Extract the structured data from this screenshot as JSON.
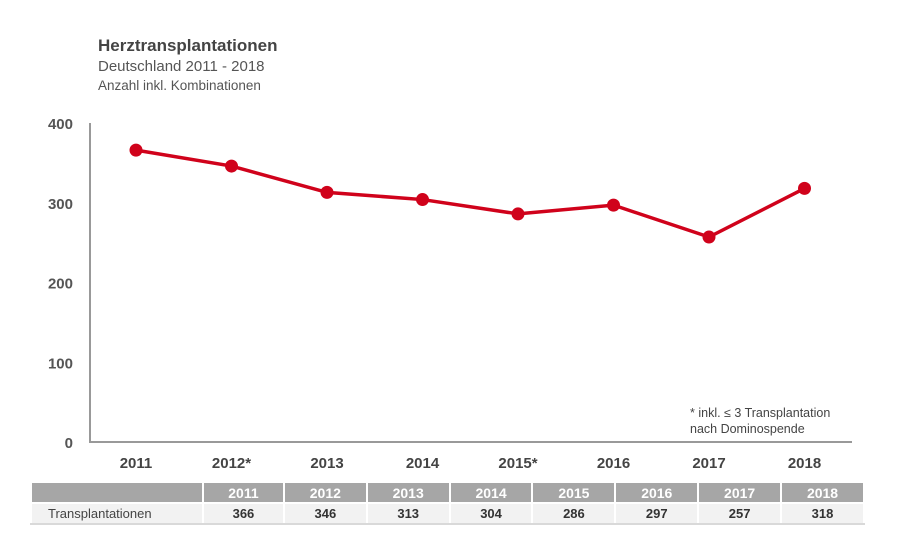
{
  "chart_data": {
    "type": "line",
    "title": "Herztransplantationen",
    "subtitle": "Deutschland 2011 - 2018",
    "subtitle2": "Anzahl inkl. Kombinationen",
    "categories": [
      "2011",
      "2012*",
      "2013",
      "2014",
      "2015*",
      "2016",
      "2017",
      "2018"
    ],
    "series": [
      {
        "name": "Transplantationen",
        "values": [
          366,
          346,
          313,
          304,
          286,
          297,
          257,
          318
        ],
        "color": "#d0021b"
      }
    ],
    "ylim": [
      0,
      400
    ],
    "yticks": [
      0,
      100,
      200,
      300,
      400
    ],
    "note": [
      "* inkl. ≤ 3 Transplantation",
      "nach Dominospende"
    ]
  },
  "table": {
    "headers": [
      "2011",
      "2012",
      "2013",
      "2014",
      "2015",
      "2016",
      "2017",
      "2018"
    ],
    "row_label": "Transplantationen",
    "values": [
      "366",
      "346",
      "313",
      "304",
      "286",
      "297",
      "257",
      "318"
    ]
  }
}
